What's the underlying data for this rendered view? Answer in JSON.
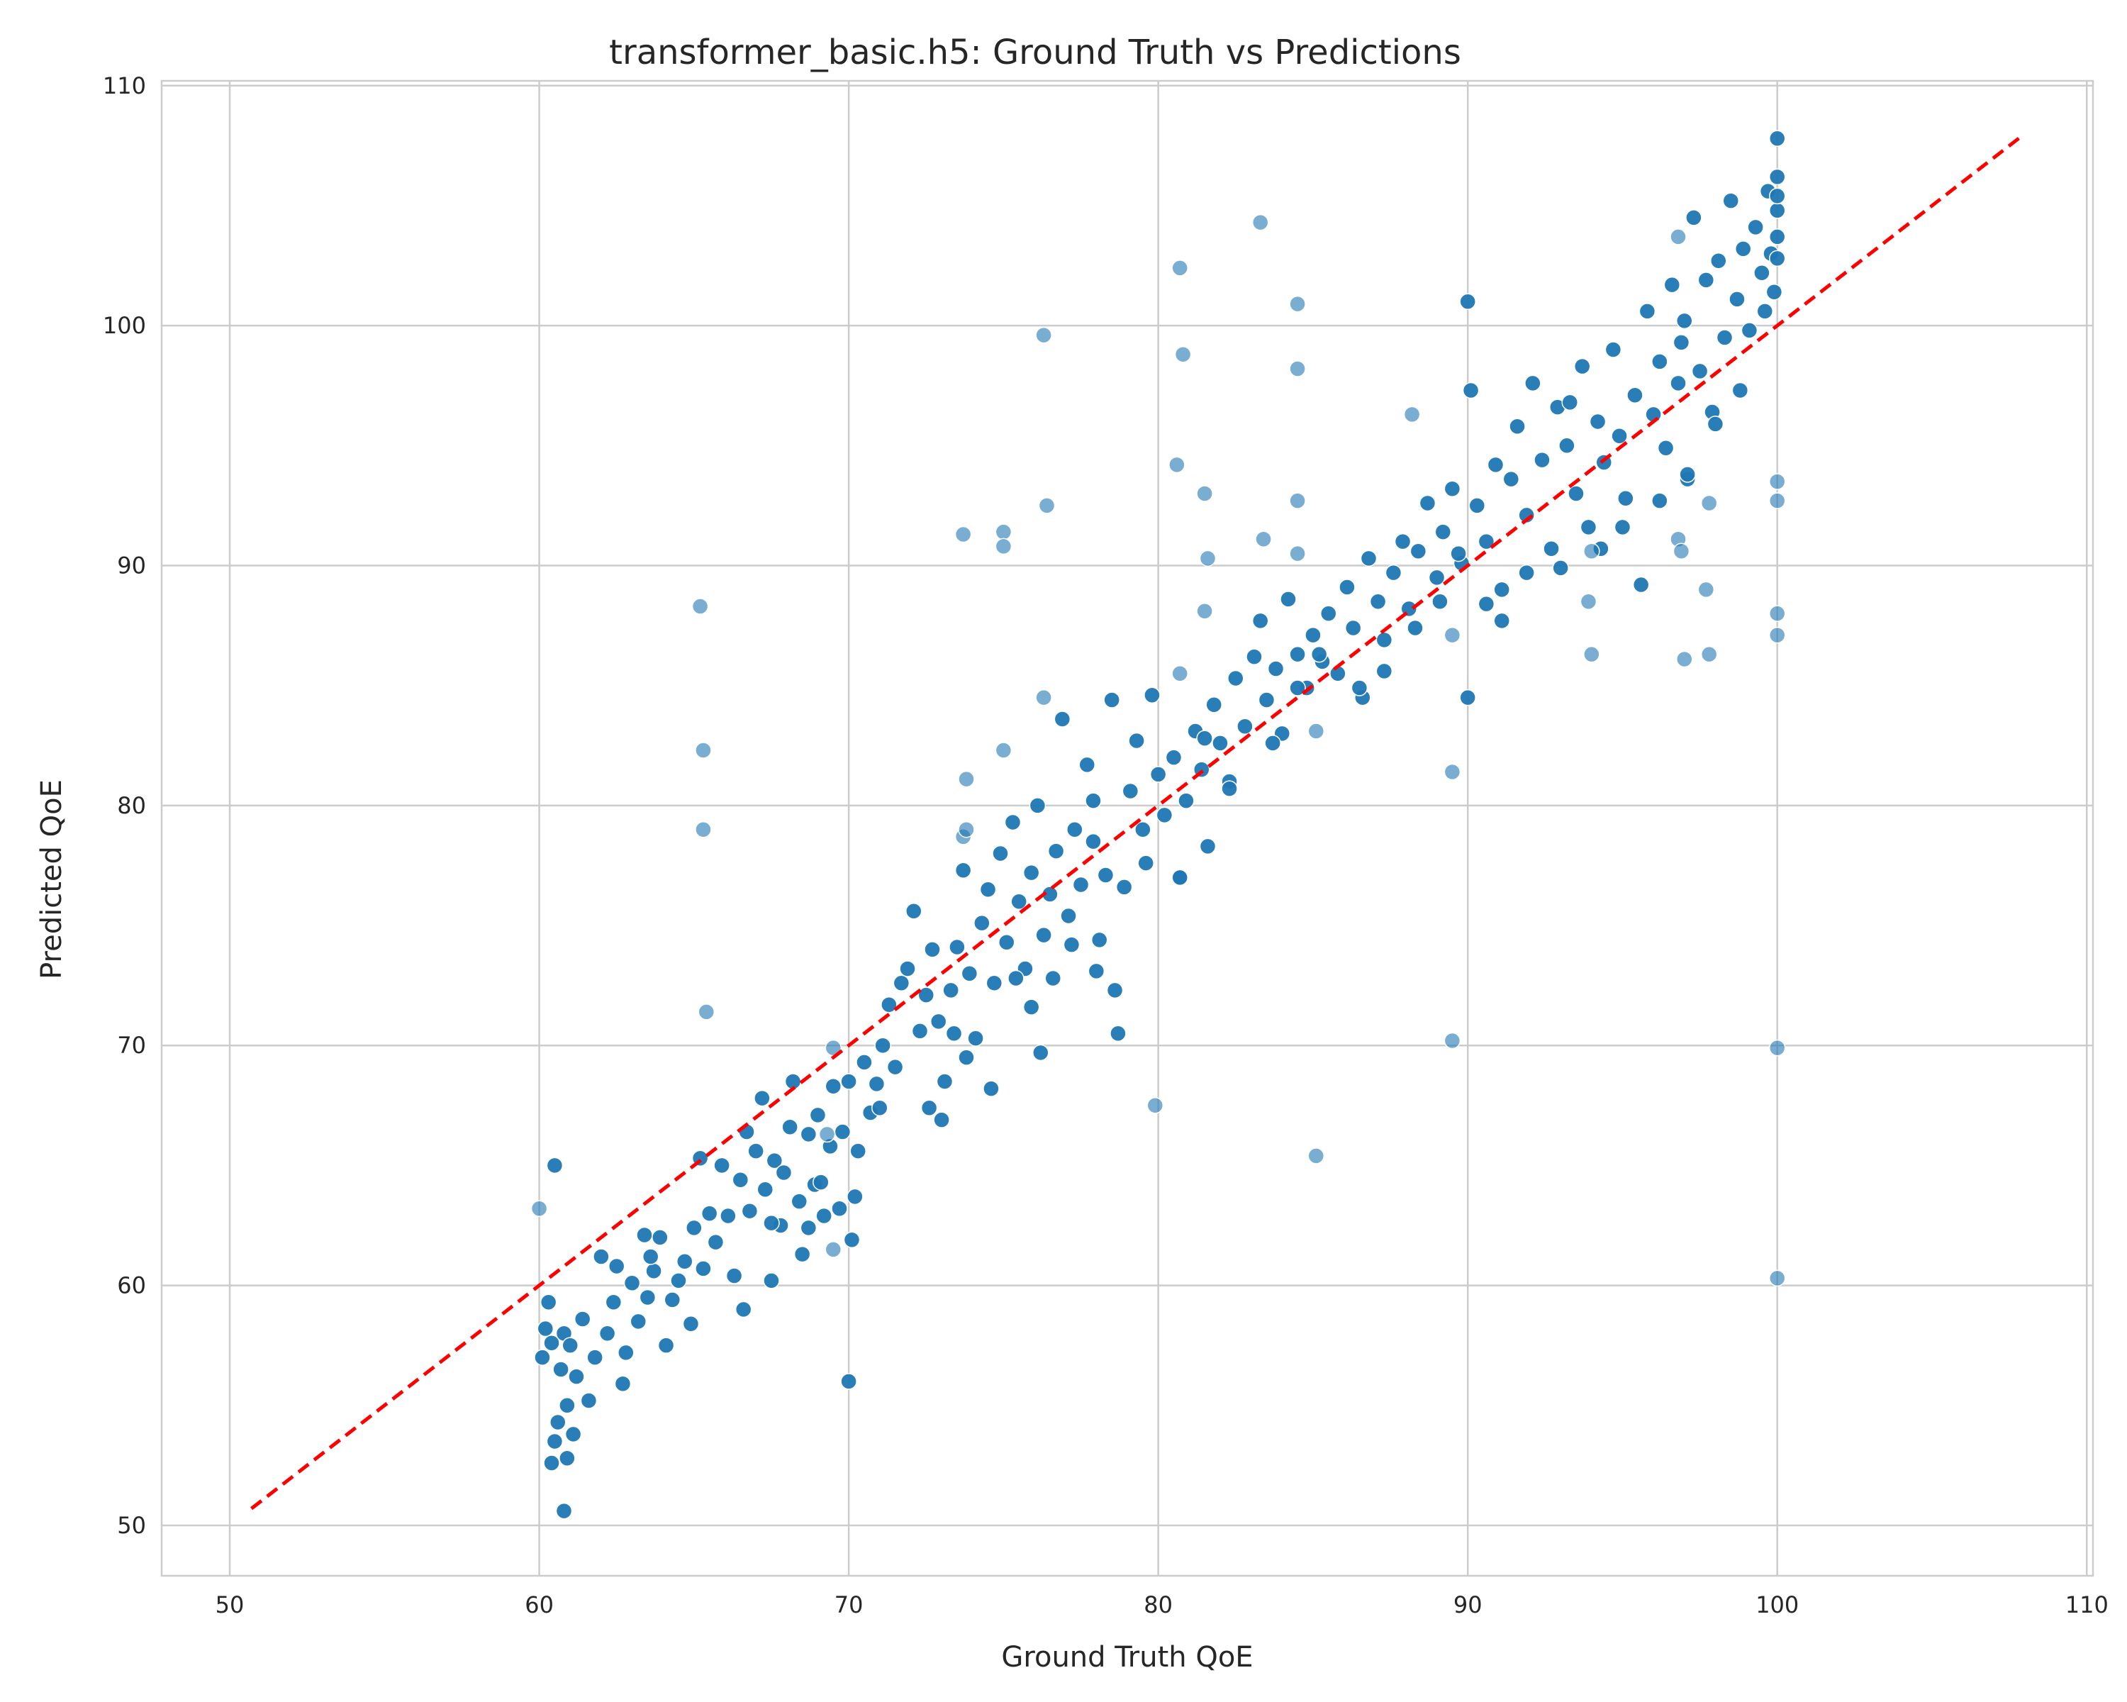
{
  "chart_data": {
    "type": "scatter",
    "title": "transformer_basic.h5: Ground Truth vs Predictions",
    "xlabel": "Ground Truth QoE",
    "ylabel": "Predicted QoE",
    "xlim": [
      47.8,
      110.2
    ],
    "ylim": [
      47.9,
      110.2
    ],
    "xticks": [
      50,
      60,
      70,
      80,
      90,
      100,
      110
    ],
    "yticks": [
      50,
      60,
      70,
      80,
      90,
      100,
      110
    ],
    "grid": true,
    "point_color": "#1f77b4",
    "reference_line": {
      "style": "dashed",
      "color": "#ff0000",
      "x": [
        50.7,
        107.9
      ],
      "y": [
        50.7,
        107.9
      ]
    },
    "series": [
      {
        "points": [
          [
            60.1,
            57.0
          ],
          [
            60.2,
            58.2
          ],
          [
            60.3,
            59.3
          ],
          [
            60.4,
            57.6
          ],
          [
            60.5,
            65.0
          ],
          [
            60.4,
            52.6
          ],
          [
            60.5,
            53.5
          ],
          [
            60.6,
            54.3
          ],
          [
            60.7,
            56.5
          ],
          [
            60.8,
            58.0
          ],
          [
            60.8,
            50.6
          ],
          [
            60.9,
            52.8
          ],
          [
            60.9,
            55.0
          ],
          [
            61.0,
            57.5
          ],
          [
            61.1,
            53.8
          ],
          [
            61.2,
            56.2
          ],
          [
            61.4,
            58.6
          ],
          [
            61.6,
            55.2
          ],
          [
            61.8,
            57.0
          ],
          [
            62.0,
            61.2
          ],
          [
            62.2,
            58.0
          ],
          [
            62.4,
            59.3
          ],
          [
            62.5,
            60.8
          ],
          [
            62.7,
            55.9
          ],
          [
            62.8,
            57.2
          ],
          [
            63.0,
            60.1
          ],
          [
            63.2,
            58.5
          ],
          [
            63.4,
            62.1
          ],
          [
            63.5,
            59.5
          ],
          [
            63.7,
            60.6
          ],
          [
            63.9,
            62.0
          ],
          [
            64.1,
            57.5
          ],
          [
            64.3,
            59.4
          ],
          [
            64.5,
            60.2
          ],
          [
            64.7,
            61.0
          ],
          [
            64.9,
            58.4
          ],
          [
            65.0,
            62.4
          ],
          [
            65.2,
            65.3
          ],
          [
            65.3,
            60.7
          ],
          [
            65.5,
            63.0
          ],
          [
            65.7,
            61.8
          ],
          [
            65.9,
            65.0
          ],
          [
            66.1,
            62.9
          ],
          [
            66.3,
            60.4
          ],
          [
            66.5,
            64.4
          ],
          [
            66.7,
            66.4
          ],
          [
            66.8,
            63.1
          ],
          [
            67.0,
            65.6
          ],
          [
            67.2,
            67.8
          ],
          [
            67.3,
            64.0
          ],
          [
            67.5,
            60.2
          ],
          [
            67.6,
            65.2
          ],
          [
            67.8,
            62.5
          ],
          [
            67.9,
            64.7
          ],
          [
            68.1,
            66.6
          ],
          [
            68.2,
            68.5
          ],
          [
            68.4,
            63.5
          ],
          [
            68.5,
            61.3
          ],
          [
            68.7,
            66.3
          ],
          [
            68.9,
            64.2
          ],
          [
            69.0,
            67.1
          ],
          [
            69.2,
            62.9
          ],
          [
            69.4,
            65.8
          ],
          [
            69.5,
            68.3
          ],
          [
            69.7,
            63.2
          ],
          [
            69.8,
            66.4
          ],
          [
            70.0,
            68.5
          ],
          [
            70.0,
            56.0
          ],
          [
            70.1,
            61.9
          ],
          [
            70.3,
            65.6
          ],
          [
            70.5,
            69.3
          ],
          [
            70.7,
            67.2
          ],
          [
            70.9,
            68.4
          ],
          [
            71.1,
            70.0
          ],
          [
            71.3,
            71.7
          ],
          [
            71.5,
            69.1
          ],
          [
            71.7,
            72.6
          ],
          [
            71.9,
            73.2
          ],
          [
            72.1,
            75.6
          ],
          [
            72.3,
            70.6
          ],
          [
            72.5,
            72.1
          ],
          [
            72.7,
            74.0
          ],
          [
            72.9,
            71.0
          ],
          [
            73.1,
            68.5
          ],
          [
            73.3,
            72.3
          ],
          [
            73.5,
            74.1
          ],
          [
            73.7,
            77.3
          ],
          [
            73.9,
            73.0
          ],
          [
            74.1,
            70.3
          ],
          [
            74.3,
            75.1
          ],
          [
            74.5,
            76.5
          ],
          [
            74.7,
            72.6
          ],
          [
            74.9,
            78.0
          ],
          [
            75.1,
            74.3
          ],
          [
            75.3,
            79.3
          ],
          [
            75.5,
            76.0
          ],
          [
            75.7,
            73.2
          ],
          [
            75.9,
            77.2
          ],
          [
            76.1,
            80.0
          ],
          [
            76.3,
            74.6
          ],
          [
            76.5,
            76.3
          ],
          [
            76.7,
            78.1
          ],
          [
            76.9,
            83.6
          ],
          [
            77.1,
            75.4
          ],
          [
            77.3,
            79.0
          ],
          [
            77.5,
            76.7
          ],
          [
            77.7,
            81.7
          ],
          [
            77.9,
            78.5
          ],
          [
            78.1,
            74.4
          ],
          [
            78.3,
            77.1
          ],
          [
            78.5,
            84.4
          ],
          [
            78.7,
            70.5
          ],
          [
            78.9,
            76.6
          ],
          [
            79.1,
            80.6
          ],
          [
            79.3,
            82.7
          ],
          [
            79.5,
            79.0
          ],
          [
            79.8,
            84.6
          ],
          [
            80.0,
            81.3
          ],
          [
            80.2,
            79.6
          ],
          [
            80.5,
            82.0
          ],
          [
            80.7,
            77.0
          ],
          [
            80.9,
            80.2
          ],
          [
            81.2,
            83.1
          ],
          [
            81.4,
            81.5
          ],
          [
            81.6,
            78.3
          ],
          [
            81.8,
            84.2
          ],
          [
            82.0,
            82.6
          ],
          [
            82.3,
            81.0
          ],
          [
            82.5,
            85.3
          ],
          [
            82.8,
            83.3
          ],
          [
            83.1,
            86.2
          ],
          [
            83.3,
            87.7
          ],
          [
            83.5,
            84.4
          ],
          [
            83.8,
            85.7
          ],
          [
            84.0,
            83.0
          ],
          [
            84.2,
            88.6
          ],
          [
            84.5,
            86.3
          ],
          [
            84.8,
            84.9
          ],
          [
            85.0,
            87.1
          ],
          [
            85.3,
            86.0
          ],
          [
            85.5,
            88.0
          ],
          [
            85.8,
            85.5
          ],
          [
            86.1,
            89.1
          ],
          [
            86.3,
            87.4
          ],
          [
            86.6,
            84.5
          ],
          [
            86.8,
            90.3
          ],
          [
            87.1,
            88.5
          ],
          [
            87.3,
            86.9
          ],
          [
            87.6,
            89.7
          ],
          [
            87.9,
            91.0
          ],
          [
            88.1,
            88.2
          ],
          [
            88.4,
            90.6
          ],
          [
            88.7,
            92.6
          ],
          [
            89.0,
            89.5
          ],
          [
            89.2,
            91.4
          ],
          [
            89.5,
            93.2
          ],
          [
            89.8,
            90.1
          ],
          [
            90.0,
            84.5
          ],
          [
            90.0,
            101.0
          ],
          [
            90.1,
            97.3
          ],
          [
            90.3,
            92.5
          ],
          [
            90.6,
            91.0
          ],
          [
            90.9,
            94.2
          ],
          [
            91.1,
            89.0
          ],
          [
            91.4,
            93.6
          ],
          [
            91.6,
            95.8
          ],
          [
            91.9,
            92.1
          ],
          [
            92.1,
            97.6
          ],
          [
            92.4,
            94.4
          ],
          [
            92.7,
            90.7
          ],
          [
            92.9,
            96.6
          ],
          [
            93.2,
            95.0
          ],
          [
            93.5,
            93.0
          ],
          [
            93.7,
            98.3
          ],
          [
            93.9,
            91.6
          ],
          [
            94.2,
            96.0
          ],
          [
            94.4,
            94.3
          ],
          [
            94.7,
            99.0
          ],
          [
            94.9,
            95.4
          ],
          [
            95.1,
            92.8
          ],
          [
            95.4,
            97.1
          ],
          [
            95.6,
            89.2
          ],
          [
            95.8,
            100.6
          ],
          [
            96.0,
            96.3
          ],
          [
            96.2,
            98.5
          ],
          [
            96.4,
            94.9
          ],
          [
            96.6,
            101.7
          ],
          [
            96.8,
            97.6
          ],
          [
            97.0,
            100.2
          ],
          [
            97.1,
            93.6
          ],
          [
            97.3,
            104.5
          ],
          [
            97.5,
            98.1
          ],
          [
            97.7,
            101.9
          ],
          [
            97.9,
            96.4
          ],
          [
            98.1,
            102.7
          ],
          [
            98.3,
            99.5
          ],
          [
            98.5,
            105.2
          ],
          [
            98.7,
            101.1
          ],
          [
            98.9,
            103.2
          ],
          [
            99.1,
            99.8
          ],
          [
            99.3,
            104.1
          ],
          [
            99.5,
            102.2
          ],
          [
            99.7,
            105.6
          ],
          [
            99.8,
            103.0
          ],
          [
            99.9,
            101.4
          ],
          [
            100.0,
            106.2
          ],
          [
            100.0,
            104.8
          ],
          [
            100.0,
            107.8
          ],
          [
            100.0,
            102.8
          ],
          [
            100.0,
            105.4
          ],
          [
            100.0,
            103.7
          ],
          [
            63.6,
            61.2
          ],
          [
            66.6,
            59.0
          ],
          [
            68.7,
            62.4
          ],
          [
            70.2,
            63.7
          ],
          [
            71.0,
            67.4
          ],
          [
            72.6,
            67.4
          ],
          [
            73.0,
            66.9
          ],
          [
            73.8,
            69.5
          ],
          [
            74.6,
            68.2
          ],
          [
            75.4,
            72.8
          ],
          [
            76.2,
            69.7
          ],
          [
            76.6,
            72.8
          ],
          [
            77.2,
            74.2
          ],
          [
            78.0,
            73.1
          ],
          [
            78.6,
            72.3
          ],
          [
            79.6,
            77.6
          ],
          [
            80.7,
            77.0
          ],
          [
            82.3,
            80.7
          ],
          [
            83.7,
            82.6
          ],
          [
            84.5,
            84.9
          ],
          [
            86.5,
            84.9
          ],
          [
            87.3,
            85.6
          ],
          [
            88.3,
            87.4
          ],
          [
            89.1,
            88.5
          ],
          [
            90.6,
            88.4
          ],
          [
            91.1,
            87.7
          ],
          [
            91.9,
            89.7
          ],
          [
            93.0,
            89.9
          ],
          [
            94.3,
            90.7
          ],
          [
            95.0,
            91.6
          ],
          [
            96.2,
            92.7
          ],
          [
            97.1,
            93.8
          ],
          [
            98.0,
            95.9
          ],
          [
            98.8,
            97.3
          ],
          [
            99.6,
            100.6
          ],
          [
            67.5,
            62.6
          ],
          [
            69.1,
            64.3
          ],
          [
            73.4,
            70.5
          ],
          [
            75.9,
            71.6
          ],
          [
            77.9,
            80.2
          ],
          [
            81.5,
            82.8
          ],
          [
            85.2,
            86.3
          ],
          [
            89.7,
            90.5
          ],
          [
            93.3,
            96.8
          ],
          [
            96.9,
            99.3
          ]
        ]
      },
      {
        "points": [
          [
            60.0,
            63.2
          ],
          [
            65.2,
            88.3
          ],
          [
            65.3,
            82.3
          ],
          [
            65.3,
            79.0
          ],
          [
            65.4,
            71.4
          ],
          [
            69.5,
            69.9
          ],
          [
            69.5,
            61.5
          ],
          [
            69.3,
            66.3
          ],
          [
            73.7,
            91.3
          ],
          [
            73.8,
            81.1
          ],
          [
            73.7,
            78.7
          ],
          [
            73.8,
            79.0
          ],
          [
            75.0,
            91.4
          ],
          [
            75.0,
            90.8
          ],
          [
            75.0,
            82.3
          ],
          [
            76.3,
            99.6
          ],
          [
            76.4,
            92.5
          ],
          [
            76.3,
            84.5
          ],
          [
            80.7,
            102.4
          ],
          [
            80.8,
            98.8
          ],
          [
            80.6,
            94.2
          ],
          [
            80.7,
            85.5
          ],
          [
            81.5,
            93.0
          ],
          [
            81.6,
            90.3
          ],
          [
            81.5,
            88.1
          ],
          [
            83.3,
            104.3
          ],
          [
            83.4,
            91.1
          ],
          [
            84.5,
            100.9
          ],
          [
            84.5,
            98.2
          ],
          [
            84.5,
            92.7
          ],
          [
            84.5,
            90.5
          ],
          [
            85.1,
            83.1
          ],
          [
            85.1,
            65.4
          ],
          [
            79.9,
            67.5
          ],
          [
            88.2,
            96.3
          ],
          [
            89.5,
            87.1
          ],
          [
            89.5,
            81.4
          ],
          [
            89.5,
            70.2
          ],
          [
            93.9,
            88.5
          ],
          [
            94.0,
            86.3
          ],
          [
            96.8,
            91.1
          ],
          [
            96.8,
            103.7
          ],
          [
            96.9,
            90.6
          ],
          [
            97.0,
            86.1
          ],
          [
            97.8,
            92.6
          ],
          [
            97.7,
            89.0
          ],
          [
            97.8,
            86.3
          ],
          [
            100.0,
            93.5
          ],
          [
            100.0,
            92.7
          ],
          [
            100.0,
            88.0
          ],
          [
            100.0,
            87.1
          ],
          [
            100.0,
            69.9
          ],
          [
            100.0,
            60.3
          ],
          [
            94.0,
            90.6
          ]
        ]
      }
    ]
  }
}
